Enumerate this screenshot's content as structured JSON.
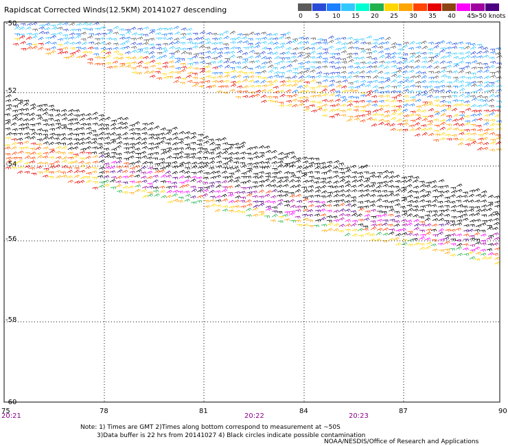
{
  "title": "Rapidscat Corrected Winds(12.5KM) 20141027 descending",
  "legend": {
    "colors": [
      "#5a5a5a",
      "#2a4bd7",
      "#1e7fff",
      "#32c8ff",
      "#00ffd0",
      "#22b14c",
      "#ffd700",
      "#ffa500",
      "#ff4500",
      "#e60000",
      "#8b4513",
      "#ff00ff",
      "#a000a0",
      "#4b0082"
    ],
    "tick_labels": [
      "0",
      "5",
      "10",
      "15",
      "20",
      "25",
      "30",
      "35",
      "40",
      "45"
    ],
    "units_label": ">50 knots"
  },
  "map": {
    "lat_labels": [
      "-50",
      "-52",
      "-54",
      "-56",
      "-58",
      "-60"
    ],
    "lon_labels": [
      "75",
      "78",
      "81",
      "84",
      "87",
      "90"
    ],
    "time_labels": [
      "20:21",
      "20:22",
      "20:23"
    ]
  },
  "notes": {
    "line1": "Note: 1) Times are GMT 2)Times along bottom correspond to measurement at ~50S",
    "line2": "3)Data buffer is 22 hrs from 20141027 4) Black circles indicate possible contamination"
  },
  "credit": "NOAA/NESDIS/Office of Research and Applications"
}
